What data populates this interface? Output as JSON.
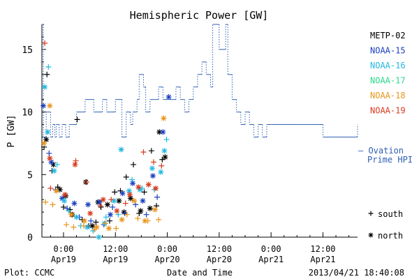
{
  "chart_data": {
    "type": "scatter",
    "title": "Hemispheric Power [GW]",
    "ylabel": "P [GW]",
    "xlabel": "Date and Time",
    "ylim": [
      0,
      17
    ],
    "xlim": [
      "2013-04-18 19:00",
      "2013-04-21 20:00"
    ],
    "y_ticks": [
      0,
      5,
      10,
      15
    ],
    "x_ticks": [
      {
        "t": "2013-04-19 00:00",
        "time": "0:00",
        "date": "Apr19"
      },
      {
        "t": "2013-04-19 12:00",
        "time": "12:00",
        "date": "Apr19"
      },
      {
        "t": "2013-04-20 00:00",
        "time": "0:00",
        "date": "Apr20"
      },
      {
        "t": "2013-04-20 12:00",
        "time": "12:00",
        "date": "Apr20"
      },
      {
        "t": "2013-04-21 00:00",
        "time": "0:00",
        "date": "Apr21"
      },
      {
        "t": "2013-04-21 12:00",
        "time": "12:00",
        "date": "Apr21"
      }
    ],
    "legend_placement": "right",
    "series": [
      {
        "name": "METP-02",
        "color": "#000000",
        "south": [
          [
            "2013-04-18 19:30",
            7.2
          ],
          [
            "2013-04-18 20:10",
            13.0
          ],
          [
            "2013-04-18 21:20",
            5.3
          ],
          [
            "2013-04-18 22:40",
            4.0
          ],
          [
            "2013-04-19 00:00",
            2.4
          ],
          [
            "2013-04-19 01:30",
            2.2
          ],
          [
            "2013-04-19 03:10",
            9.4
          ],
          [
            "2013-04-19 04:20",
            1.4
          ],
          [
            "2013-04-19 05:50",
            0.9
          ],
          [
            "2013-04-19 07:30",
            1.2
          ],
          [
            "2013-04-19 08:40",
            2.4
          ],
          [
            "2013-04-19 10:40",
            1.3
          ],
          [
            "2013-04-19 11:50",
            3.6
          ],
          [
            "2013-04-19 13:10",
            3.7
          ],
          [
            "2013-04-19 14:30",
            4.8
          ],
          [
            "2013-04-19 16:10",
            5.8
          ],
          [
            "2013-04-19 17:30",
            1.9
          ],
          [
            "2013-04-19 18:40",
            3.6
          ],
          [
            "2013-04-19 20:20",
            6.9
          ],
          [
            "2013-04-19 21:30",
            2.5
          ],
          [
            "2013-04-19 22:50",
            6.2
          ]
        ],
        "north": [
          [
            "2013-04-18 20:00",
            7.8
          ],
          [
            "2013-04-18 21:40",
            5.8
          ],
          [
            "2013-04-18 23:10",
            3.8
          ],
          [
            "2013-04-19 00:30",
            3.3
          ],
          [
            "2013-04-19 02:00",
            1.8
          ],
          [
            "2013-04-19 05:10",
            4.4
          ],
          [
            "2013-04-19 06:40",
            0.9
          ],
          [
            "2013-04-19 08:00",
            2.8
          ],
          [
            "2013-04-19 10:10",
            2.6
          ],
          [
            "2013-04-19 12:50",
            2.9
          ],
          [
            "2013-04-19 14:00",
            2.0
          ],
          [
            "2013-04-19 15:30",
            3.1
          ],
          [
            "2013-04-19 17:50",
            2.1
          ],
          [
            "2013-04-19 20:00",
            2.3
          ],
          [
            "2013-04-19 22:10",
            8.4
          ],
          [
            "2013-04-19 23:30",
            6.4
          ]
        ]
      },
      {
        "name": "NOAA-15",
        "color": "#1a3fbf",
        "south": [
          [
            "2013-04-18 20:40",
            6.7
          ],
          [
            "2013-04-18 22:10",
            3.8
          ],
          [
            "2013-04-19 00:50",
            2.3
          ],
          [
            "2013-04-19 03:40",
            1.6
          ],
          [
            "2013-04-19 06:20",
            1.3
          ],
          [
            "2013-04-19 09:20",
            1.0
          ],
          [
            "2013-04-19 11:20",
            2.4
          ],
          [
            "2013-04-19 14:10",
            1.9
          ],
          [
            "2013-04-19 16:40",
            2.6
          ],
          [
            "2013-04-19 19:10",
            1.8
          ],
          [
            "2013-04-19 21:40",
            3.2
          ]
        ],
        "north": [
          [
            "2013-04-18 19:20",
            10.5
          ],
          [
            "2013-04-18 21:10",
            6.0
          ],
          [
            "2013-04-18 23:40",
            3.1
          ],
          [
            "2013-04-19 02:30",
            2.7
          ],
          [
            "2013-04-19 05:40",
            2.6
          ],
          [
            "2013-04-19 08:20",
            2.8
          ],
          [
            "2013-04-19 10:50",
            1.8
          ],
          [
            "2013-04-19 13:40",
            3.5
          ],
          [
            "2013-04-19 16:00",
            4.3
          ],
          [
            "2013-04-19 18:20",
            2.9
          ],
          [
            "2013-04-19 20:40",
            4.9
          ],
          [
            "2013-04-19 23:00",
            8.4
          ],
          [
            "2013-04-20 00:20",
            11.2
          ]
        ]
      },
      {
        "name": "NOAA-16",
        "color": "#22b8e0",
        "south": [
          [
            "2013-04-18 20:30",
            13.6
          ],
          [
            "2013-04-18 22:30",
            5.8
          ],
          [
            "2013-04-19 01:10",
            2.1
          ],
          [
            "2013-04-19 04:00",
            0.9
          ],
          [
            "2013-04-19 06:50",
            0.5
          ],
          [
            "2013-04-19 09:50",
            1.6
          ],
          [
            "2013-04-19 12:40",
            1.8
          ],
          [
            "2013-04-19 15:50",
            4.6
          ],
          [
            "2013-04-19 18:10",
            3.9
          ],
          [
            "2013-04-19 21:00",
            3.8
          ],
          [
            "2013-04-19 23:50",
            7.8
          ]
        ],
        "north": [
          [
            "2013-04-18 19:40",
            12.0
          ],
          [
            "2013-04-18 20:20",
            8.4
          ],
          [
            "2013-04-18 21:50",
            5.3
          ],
          [
            "2013-04-19 00:10",
            2.9
          ],
          [
            "2013-04-19 03:00",
            1.6
          ],
          [
            "2013-04-19 05:30",
            0.8
          ],
          [
            "2013-04-19 08:10",
            0.0
          ],
          [
            "2013-04-19 09:30",
            1.1
          ],
          [
            "2013-04-19 11:40",
            2.9
          ],
          [
            "2013-04-19 13:20",
            7.0
          ],
          [
            "2013-04-19 15:10",
            3.7
          ],
          [
            "2013-04-19 17:40",
            3.8
          ],
          [
            "2013-04-19 20:30",
            5.5
          ],
          [
            "2013-04-19 22:30",
            5.2
          ],
          [
            "2013-04-19 23:20",
            6.9
          ]
        ]
      },
      {
        "name": "NOAA-17",
        "color": "#28d98a",
        "south": [],
        "north": []
      },
      {
        "name": "NOAA-18",
        "color": "#e8951a",
        "south": [
          [
            "2013-04-18 19:50",
            2.8
          ],
          [
            "2013-04-18 21:30",
            2.6
          ],
          [
            "2013-04-19 00:40",
            1.0
          ],
          [
            "2013-04-19 02:20",
            0.8
          ],
          [
            "2013-04-19 04:40",
            0.9
          ],
          [
            "2013-04-19 07:10",
            0.6
          ],
          [
            "2013-04-19 09:40",
            1.1
          ],
          [
            "2013-04-19 12:10",
            0.7
          ],
          [
            "2013-04-19 14:40",
            1.8
          ],
          [
            "2013-04-19 17:10",
            1.5
          ],
          [
            "2013-04-19 19:30",
            1.3
          ],
          [
            "2013-04-19 22:00",
            1.4
          ]
        ],
        "north": [
          [
            "2013-04-18 19:30",
            7.5
          ],
          [
            "2013-04-18 20:50",
            10.5
          ],
          [
            "2013-04-18 22:20",
            3.7
          ],
          [
            "2013-04-19 01:50",
            1.8
          ],
          [
            "2013-04-19 04:50",
            1.3
          ],
          [
            "2013-04-19 07:40",
            0.8
          ],
          [
            "2013-04-19 10:30",
            0.7
          ],
          [
            "2013-04-19 13:30",
            1.4
          ],
          [
            "2013-04-19 16:20",
            2.9
          ],
          [
            "2013-04-19 18:50",
            1.3
          ],
          [
            "2013-04-19 21:10",
            2.2
          ],
          [
            "2013-04-19 23:10",
            9.5
          ]
        ]
      },
      {
        "name": "NOAA-19",
        "color": "#d83a1e",
        "south": [
          [
            "2013-04-18 19:40",
            15.5
          ],
          [
            "2013-04-18 21:00",
            3.9
          ],
          [
            "2013-04-19 02:50",
            6.1
          ],
          [
            "2013-04-19 05:20",
            4.4
          ],
          [
            "2013-04-19 08:30",
            2.5
          ],
          [
            "2013-04-19 11:00",
            3.0
          ],
          [
            "2013-04-19 14:20",
            2.7
          ],
          [
            "2013-04-19 18:30",
            6.8
          ],
          [
            "2013-04-19 20:50",
            6.0
          ],
          [
            "2013-04-19 22:40",
            5.7
          ]
        ],
        "north": [
          [
            "2013-04-18 20:50",
            6.3
          ],
          [
            "2013-04-19 00:20",
            3.4
          ],
          [
            "2013-04-19 02:40",
            5.8
          ],
          [
            "2013-04-19 06:10",
            1.9
          ],
          [
            "2013-04-19 09:10",
            3.0
          ],
          [
            "2013-04-19 12:20",
            2.1
          ],
          [
            "2013-04-19 15:20",
            3.4
          ],
          [
            "2013-04-19 17:20",
            4.0
          ],
          [
            "2013-04-19 19:40",
            4.2
          ],
          [
            "2013-04-19 21:20",
            3.9
          ]
        ]
      }
    ],
    "ovation": {
      "name": "Ovation Prime HPI",
      "label_line1": "— Ovation",
      "label_line2": "Prime HPI",
      "color": "#2e5fb2",
      "points": [
        [
          "2013-04-18 19:00",
          17.0
        ],
        [
          "2013-04-18 19:20",
          8.0
        ],
        [
          "2013-04-18 20:00",
          10.0
        ],
        [
          "2013-04-18 21:00",
          8.0
        ],
        [
          "2013-04-18 21:30",
          9.0
        ],
        [
          "2013-04-18 22:00",
          8.0
        ],
        [
          "2013-04-18 22:20",
          9.0
        ],
        [
          "2013-04-18 23:00",
          8.0
        ],
        [
          "2013-04-18 23:40",
          9.0
        ],
        [
          "2013-04-19 00:30",
          8.0
        ],
        [
          "2013-04-19 01:20",
          9.0
        ],
        [
          "2013-04-19 03:00",
          10.0
        ],
        [
          "2013-04-19 05:00",
          11.0
        ],
        [
          "2013-04-19 07:00",
          10.0
        ],
        [
          "2013-04-19 09:00",
          11.0
        ],
        [
          "2013-04-19 10:00",
          10.0
        ],
        [
          "2013-04-19 12:00",
          11.0
        ],
        [
          "2013-04-19 13:30",
          8.0
        ],
        [
          "2013-04-19 14:30",
          10.0
        ],
        [
          "2013-04-19 15:30",
          9.0
        ],
        [
          "2013-04-19 16:00",
          10.0
        ],
        [
          "2013-04-19 17:00",
          11.0
        ],
        [
          "2013-04-19 17:30",
          13.0
        ],
        [
          "2013-04-19 18:30",
          12.0
        ],
        [
          "2013-04-19 19:00",
          10.0
        ],
        [
          "2013-04-19 20:00",
          11.0
        ],
        [
          "2013-04-19 21:00",
          11.0
        ],
        [
          "2013-04-19 22:00",
          12.0
        ],
        [
          "2013-04-19 23:00",
          11.0
        ],
        [
          "2013-04-20 00:00",
          11.0
        ],
        [
          "2013-04-20 01:00",
          11.0
        ],
        [
          "2013-04-20 02:00",
          12.0
        ],
        [
          "2013-04-20 03:00",
          11.0
        ],
        [
          "2013-04-20 04:00",
          10.0
        ],
        [
          "2013-04-20 05:00",
          11.0
        ],
        [
          "2013-04-20 06:00",
          12.0
        ],
        [
          "2013-04-20 07:00",
          13.0
        ],
        [
          "2013-04-20 08:00",
          14.0
        ],
        [
          "2013-04-20 09:00",
          13.0
        ],
        [
          "2013-04-20 10:00",
          12.0
        ],
        [
          "2013-04-20 10:30",
          17.0
        ],
        [
          "2013-04-20 12:00",
          15.0
        ],
        [
          "2013-04-20 13:30",
          17.0
        ],
        [
          "2013-04-20 14:00",
          13.0
        ],
        [
          "2013-04-20 15:00",
          11.0
        ],
        [
          "2013-04-20 16:00",
          10.0
        ],
        [
          "2013-04-20 17:00",
          9.0
        ],
        [
          "2013-04-20 18:00",
          10.0
        ],
        [
          "2013-04-20 19:00",
          9.0
        ],
        [
          "2013-04-20 20:00",
          8.0
        ],
        [
          "2013-04-20 21:00",
          9.0
        ],
        [
          "2013-04-20 22:00",
          8.0
        ],
        [
          "2013-04-20 23:00",
          9.0
        ],
        [
          "2013-04-21 00:00",
          9.0
        ],
        [
          "2013-04-21 02:00",
          9.0
        ],
        [
          "2013-04-21 04:00",
          9.0
        ],
        [
          "2013-04-21 06:00",
          9.0
        ],
        [
          "2013-04-21 08:00",
          9.0
        ],
        [
          "2013-04-21 10:00",
          9.0
        ],
        [
          "2013-04-21 12:00",
          8.0
        ],
        [
          "2013-04-21 14:00",
          8.0
        ],
        [
          "2013-04-21 16:00",
          8.0
        ],
        [
          "2013-04-21 19:30",
          8.0
        ],
        [
          "2013-04-21 20:00",
          9.0
        ]
      ]
    },
    "marker_legend": {
      "south": "south",
      "north": "north"
    }
  },
  "footer": {
    "plot_credit": "Plot: CCMC",
    "timestamp": "2013/04/21 18:40:08"
  }
}
